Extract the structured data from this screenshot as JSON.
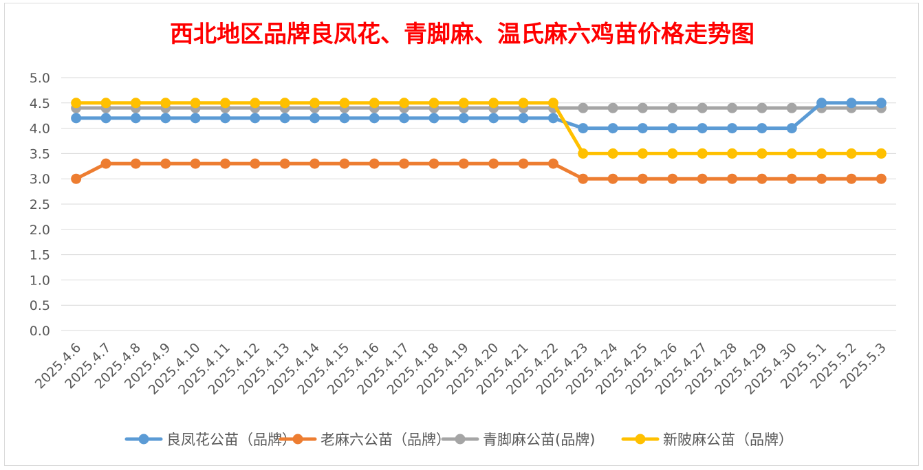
{
  "chart_data": {
    "type": "line",
    "title": "西北地区品牌良凤花、青脚麻、温氏麻六鸡苗价格走势图",
    "xlabel": "",
    "ylabel": "",
    "ylim": [
      0,
      5
    ],
    "yticks": [
      "0.0",
      "0.5",
      "1.0",
      "1.5",
      "2.0",
      "2.5",
      "3.0",
      "3.5",
      "4.0",
      "4.5",
      "5.0"
    ],
    "grid": true,
    "legend_position": "bottom",
    "categories": [
      "2025.4.6",
      "2025.4.7",
      "2025.4.8",
      "2025.4.9",
      "2025.4.10",
      "2025.4.11",
      "2025.4.12",
      "2025.4.13",
      "2025.4.14",
      "2025.4.15",
      "2025.4.16",
      "2025.4.17",
      "2025.4.18",
      "2025.4.19",
      "2025.4.20",
      "2025.4.21",
      "2025.4.22",
      "2025.4.23",
      "2025.4.24",
      "2025.4.25",
      "2025.4.26",
      "2025.4.27",
      "2025.4.28",
      "2025.4.29",
      "2025.4.30",
      "2025.5.1",
      "2025.5.2",
      "2025.5.3"
    ],
    "series": [
      {
        "name": "良凤花公苗（品牌）",
        "color": "#5b9bd5",
        "values": [
          4.2,
          4.2,
          4.2,
          4.2,
          4.2,
          4.2,
          4.2,
          4.2,
          4.2,
          4.2,
          4.2,
          4.2,
          4.2,
          4.2,
          4.2,
          4.2,
          4.2,
          4.0,
          4.0,
          4.0,
          4.0,
          4.0,
          4.0,
          4.0,
          4.0,
          4.5,
          4.5,
          4.5
        ]
      },
      {
        "name": "老麻六公苗（品牌）",
        "color": "#ed7d31",
        "values": [
          3.0,
          3.3,
          3.3,
          3.3,
          3.3,
          3.3,
          3.3,
          3.3,
          3.3,
          3.3,
          3.3,
          3.3,
          3.3,
          3.3,
          3.3,
          3.3,
          3.3,
          3.0,
          3.0,
          3.0,
          3.0,
          3.0,
          3.0,
          3.0,
          3.0,
          3.0,
          3.0,
          3.0
        ]
      },
      {
        "name": "青脚麻公苗(品牌)",
        "color": "#a5a5a5",
        "values": [
          4.4,
          4.4,
          4.4,
          4.4,
          4.4,
          4.4,
          4.4,
          4.4,
          4.4,
          4.4,
          4.4,
          4.4,
          4.4,
          4.4,
          4.4,
          4.4,
          4.4,
          4.4,
          4.4,
          4.4,
          4.4,
          4.4,
          4.4,
          4.4,
          4.4,
          4.4,
          4.4,
          4.4
        ]
      },
      {
        "name": "新陂麻公苗（品牌）",
        "color": "#ffc000",
        "values": [
          4.5,
          4.5,
          4.5,
          4.5,
          4.5,
          4.5,
          4.5,
          4.5,
          4.5,
          4.5,
          4.5,
          4.5,
          4.5,
          4.5,
          4.5,
          4.5,
          4.5,
          3.5,
          3.5,
          3.5,
          3.5,
          3.5,
          3.5,
          3.5,
          3.5,
          3.5,
          3.5,
          3.5
        ]
      }
    ]
  }
}
